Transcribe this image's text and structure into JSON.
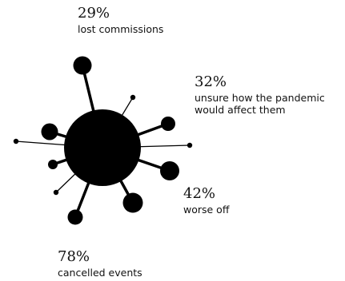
{
  "callouts": [
    {
      "id": "lost-commissions",
      "pct": "29%",
      "label": "lost commissions"
    },
    {
      "id": "unsure",
      "pct": "32%",
      "label_lines": [
        "unsure how the pandemic",
        "would affect them"
      ]
    },
    {
      "id": "worse-off",
      "pct": "42%",
      "label": "worse off"
    },
    {
      "id": "cancelled-events",
      "pct": "78%",
      "label": "cancelled events"
    }
  ],
  "colors": {
    "ink": "#000000",
    "text": "#111111",
    "background": "#ffffff"
  }
}
